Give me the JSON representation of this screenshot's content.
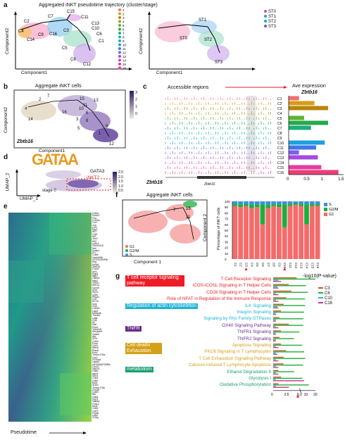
{
  "panel_a": {
    "label": "a",
    "title": "Aggregated iNKT pseudotime trajectory (cluster/stage)",
    "xlabel": "Component1",
    "ylabel": "Component2",
    "clusters": [
      "C1",
      "C2",
      "C3",
      "C4",
      "C5",
      "C6",
      "C7",
      "C8",
      "C9",
      "C10",
      "C11",
      "C12",
      "C13",
      "C14",
      "C15",
      "C16"
    ],
    "legend_numbers": [
      "1",
      "2",
      "3",
      "4",
      "5",
      "6",
      "7",
      "8",
      "9",
      "10",
      "11",
      "12",
      "13",
      "14",
      "15",
      "16"
    ],
    "stages": [
      "ST0",
      "ST1",
      "ST2",
      "ST3"
    ],
    "stage_colors": [
      "#f0468f",
      "#2a9bd8",
      "#1ab29c",
      "#8a4bc1"
    ]
  },
  "panel_b": {
    "label": "b",
    "title": "Aggregate iNKT cells",
    "gene": "Zbtb16",
    "xlabel": "Component1",
    "ylabel": "Component2",
    "colorbar_ticks": [
      "3",
      "2",
      "1",
      "0"
    ],
    "cluster_numbers": [
      "2",
      "7",
      "4",
      "14",
      "16",
      "15",
      "13",
      "11",
      "10",
      "6",
      "8",
      "3",
      "5",
      "1",
      "9",
      "12"
    ]
  },
  "panel_c": {
    "label": "c",
    "title": "Accessible regions",
    "right_title": "Ave expression",
    "gene_label": "Zbtb16",
    "gene_track": "Zbtb16",
    "rows": [
      "C1",
      "C2",
      "C3",
      "C4",
      "C5",
      "C6",
      "C7",
      "C8",
      "C9",
      "C10",
      "C11",
      "C12",
      "C13",
      "C14",
      "C15",
      "C16"
    ],
    "bar_colors": [
      "#f26f6f",
      "#d99b1a",
      "#b8860b",
      "#9aa40a",
      "#5fb52e",
      "#2aa84a",
      "#1cae7a",
      "#1bb4a5",
      "#19b2c8",
      "#1d9fe0",
      "#3f78e6",
      "#7b5fe6",
      "#a54be0",
      "#cb41c6",
      "#e53c9e",
      "#f03b78"
    ],
    "chart_data": {
      "type": "bar",
      "categories": [
        "C1",
        "C2",
        "C3",
        "C4",
        "C5",
        "C6",
        "C7",
        "C8",
        "C9",
        "C10",
        "C11",
        "C12",
        "C13",
        "C14",
        "C15",
        "C16"
      ],
      "values": [
        0.3,
        0.75,
        1.15,
        0.0,
        0.45,
        1.15,
        0.65,
        0.0,
        0.0,
        1.05,
        0.8,
        0.3,
        0.85,
        0.0,
        0.95,
        1.45
      ],
      "xticks": [
        "0",
        "0.5",
        "1",
        "1.5"
      ],
      "xlim": [
        0,
        1.6
      ]
    }
  },
  "panel_d": {
    "label": "d",
    "logo": "GATAA",
    "gene": "GATA3",
    "annot1": "iNKT2",
    "annot2": "stage 0",
    "xlabel": "UMAP_1",
    "ylabel": "UMAP_2",
    "colorbar_ticks": [
      "2.5",
      "2.0",
      "1.5",
      "1.0",
      "0.5"
    ]
  },
  "panel_e": {
    "label": "e",
    "xlabel": "Pseudotime",
    "genes": [
      "Cd4d",
      "Rps23",
      "Fos",
      "Cd24a",
      "Ccr7",
      "Jun",
      "Lef1",
      "Egr1",
      "Ifi27",
      "Ccl5",
      "Id3",
      "Tox2",
      "Klf2",
      "Ly6c1",
      "Gm42418",
      "Sell",
      "Dusp1",
      "Il7r",
      "Cd69",
      "Gadd45b",
      "2210419I2Rik",
      "Ifng",
      "Nr4a1",
      "Zbtb16",
      "Cxcr6",
      "Xcl1",
      "Rgs1",
      "Itgb7",
      "Ctla2a",
      "Nkg7",
      "Tbx21",
      "Klrb1c",
      "Gzma",
      "Il2rb",
      "Klrd1",
      "Ly6a",
      "Pdcd1",
      "Cd7",
      "Il17rb",
      "Icos",
      "Ccl4",
      "Cd160",
      "Lag3",
      "Ms4a4b",
      "Tnfrsf4",
      "Ly6e",
      "Cd5",
      "Il4",
      "Maf",
      "Rora",
      "Tnfrsf18",
      "Serpinb9",
      "Gata3",
      "Ahr",
      "Il23r",
      "Cd44",
      "Furin",
      "Ccr6",
      "Ifitm3",
      "Plac8",
      "Rorc",
      "Tmem176a",
      "Ccr2",
      "S100a4",
      "Lgals1",
      "A430084P05Rik",
      "Cxcr3",
      "Nkg7b",
      "Hopx",
      "Itga4",
      "Sox4",
      "Crip1",
      "Ctsw",
      "Emb",
      "Il18r1",
      "Tmem176b",
      "Gm38",
      "Cd83",
      "Blk",
      "Ctla4",
      "Sorl1",
      "Nfkbia",
      "Gm12",
      "Ikzf2",
      "Cd52",
      "Cd27",
      "H2afz",
      "Ly6d",
      "Cd3g"
    ]
  },
  "panel_f": {
    "label": "f",
    "title": "Aggregate iNKT cells",
    "xlabel": "Component 1",
    "ylabel": "Component 2",
    "legend": [
      "G1",
      "G2/M",
      "S"
    ],
    "phase_colors": [
      "#f36b6b",
      "#1fae3c",
      "#3b8fe6"
    ],
    "bar_ylabel": "Percentage of iNKT cells",
    "chart_data": {
      "type": "bar",
      "stacked": true,
      "categories": [
        "C1",
        "C2",
        "C3",
        "C4",
        "C5",
        "C6",
        "C7",
        "C8",
        "C9",
        "C10",
        "C11",
        "C12",
        "C13",
        "C14",
        "C15",
        "C16"
      ],
      "series": [
        {
          "name": "G1",
          "values": [
            92,
            90,
            92,
            88,
            90,
            60,
            88,
            92,
            90,
            55,
            92,
            94,
            92,
            60,
            92,
            92
          ]
        },
        {
          "name": "G2/M",
          "values": [
            4,
            5,
            4,
            6,
            5,
            35,
            6,
            4,
            5,
            40,
            4,
            3,
            4,
            35,
            4,
            4
          ]
        },
        {
          "name": "S",
          "values": [
            4,
            5,
            4,
            6,
            5,
            5,
            6,
            4,
            5,
            5,
            4,
            3,
            4,
            5,
            4,
            4
          ]
        }
      ],
      "yticks": [
        "0",
        "10",
        "20",
        "30",
        "40",
        "50",
        "60",
        "70",
        "80",
        "90",
        "100"
      ],
      "ylim": [
        0,
        100
      ]
    }
  },
  "panel_g": {
    "label": "g",
    "title": "-log10(P-value)",
    "categories": [
      {
        "name": "T cell receptor signaling pathway",
        "class": "lbl-red"
      },
      {
        "name": "Regulation of actin cytoskeleton",
        "class": "lbl-cyan"
      },
      {
        "name": "TNFR",
        "class": "lbl-purple"
      },
      {
        "name": "Cell death/ Exhaustion",
        "class": "lbl-gold"
      },
      {
        "name": "metabolism",
        "class": "lbl-green"
      }
    ],
    "pathways": [
      {
        "name": "T Cell Receptor Signaling",
        "color": "#ee1c25"
      },
      {
        "name": "iCOS-iCOSL Signaling in T Helper Cells",
        "color": "#ee1c25"
      },
      {
        "name": "CD28 Signaling in T Helper Cells",
        "color": "#ee1c25"
      },
      {
        "name": "Role of NFAT in Regulation of the Immune Response",
        "color": "#ee1c25"
      },
      {
        "name": "ILK Signaling",
        "color": "#1fb3d6"
      },
      {
        "name": "Integrin Signaling",
        "color": "#1fb3d6"
      },
      {
        "name": "Signaling by Rho Family GTPases",
        "color": "#1fb3d6"
      },
      {
        "name": "OX40 Signaling Pathway",
        "color": "#6a2c8f"
      },
      {
        "name": "TNFR1 Signaling",
        "color": "#6a2c8f"
      },
      {
        "name": "TNFR2 Signaling",
        "color": "#6a2c8f"
      },
      {
        "name": "Apoptosis Signaling",
        "color": "#d4a017"
      },
      {
        "name": "PKCθ Signaling in T Lymphocytes",
        "color": "#d4a017"
      },
      {
        "name": "T Cell Exhaustion Signaling Pathway",
        "color": "#d4a017"
      },
      {
        "name": "Calcium-induced T Lymphocyte Apoptosis",
        "color": "#d4a017"
      },
      {
        "name": "Ethanol Degradation II",
        "color": "#1a9f6f"
      },
      {
        "name": "Glycolysis I",
        "color": "#1a9f6f"
      },
      {
        "name": "Oxidative Phosphorylation",
        "color": "#1a9f6f"
      }
    ],
    "legend": [
      "C3",
      "C6",
      "C10",
      "C16"
    ],
    "legend_colors": [
      "#c25a1e",
      "#1fae3c",
      "#1fb3d6",
      "#d63384"
    ],
    "chart_data": {
      "type": "bar",
      "orientation": "horizontal",
      "categories": [
        "T Cell Receptor Signaling",
        "iCOS-iCOSL Signaling in T Helper Cells",
        "CD28 Signaling in T Helper Cells",
        "Role of NFAT in Regulation of the Immune Response",
        "ILK Signaling",
        "Integrin Signaling",
        "Signaling by Rho Family GTPases",
        "OX40 Signaling Pathway",
        "TNFR1 Signaling",
        "TNFR2 Signaling",
        "Apoptosis Signaling",
        "PKCθ Signaling in T Lymphocytes",
        "T Cell Exhaustion Signaling Pathway",
        "Calcium-induced T Lymphocyte Apoptosis",
        "Ethanol Degradation II",
        "Glycolysis I",
        "Oxidative Phosphorylation"
      ],
      "series": [
        {
          "name": "C3",
          "values": [
            4.5,
            3.0,
            3.5,
            2.5,
            2.0,
            1.5,
            1.2,
            3.0,
            1.5,
            1.2,
            1.5,
            2.5,
            2.0,
            2.0,
            1.0,
            1.5,
            1.0
          ]
        },
        {
          "name": "C6",
          "values": [
            20,
            10,
            12,
            9,
            9,
            8,
            7,
            7,
            5,
            4,
            6,
            8,
            9,
            7,
            4,
            6,
            13
          ]
        },
        {
          "name": "C10",
          "values": [
            1.0,
            0.8,
            0.5,
            0.5,
            0.8,
            0.5,
            0.5,
            0.5,
            0.5,
            0.5,
            0.5,
            0.5,
            0.5,
            0.5,
            0.5,
            0.5,
            0.5
          ]
        },
        {
          "name": "C16",
          "values": [
            1.5,
            1.0,
            1.0,
            1.0,
            1.0,
            0.5,
            0.5,
            1.0,
            0.5,
            0.5,
            1.0,
            0.8,
            1.0,
            1.0,
            1.0,
            8,
            3
          ]
        }
      ],
      "xticks": [
        "0",
        "2.5",
        "5.0",
        "10",
        "20"
      ]
    }
  }
}
